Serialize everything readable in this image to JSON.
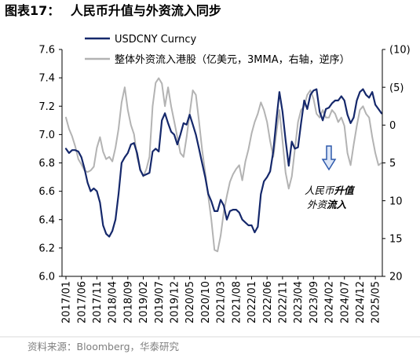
{
  "figure": {
    "label": "图表17："
  },
  "source": "资料来源：Bloomberg，华泰研究",
  "annotation": {
    "line1_regular": "人民币",
    "line1_bold": "升值",
    "line2_regular": "外资",
    "line2_bold": "流入",
    "arrow_icon": "down-arrow-icon",
    "arrow_stroke": "#2e5aac",
    "arrow_fill": "#dce6f7"
  },
  "chart_data": {
    "type": "line",
    "title": "人民币升值与外资流入同步",
    "legend_position": "top-left",
    "grid": false,
    "ylim": [
      6.0,
      7.6
    ],
    "y2lim": [
      -10,
      20
    ],
    "y2_reversed": true,
    "y_ticks": [
      "6.0",
      "6.2",
      "6.4",
      "6.6",
      "6.8",
      "7.0",
      "7.2",
      "7.4",
      "7.6"
    ],
    "y2_ticks": [
      "(10)",
      "(5)",
      "0",
      "5",
      "10",
      "15",
      "20"
    ],
    "x_ticks": [
      "2017/01",
      "2017/06",
      "2017/11",
      "2018/04",
      "2018/09",
      "2019/02",
      "2019/07",
      "2019/12",
      "2020/05",
      "2020/10",
      "2021/03",
      "2021/08",
      "2022/01",
      "2022/06",
      "2022/11",
      "2023/04",
      "2023/09",
      "2024/02",
      "2024/07",
      "2024/12",
      "2025/05"
    ],
    "x": [
      "2017/01",
      "2017/02",
      "2017/03",
      "2017/04",
      "2017/05",
      "2017/06",
      "2017/07",
      "2017/08",
      "2017/09",
      "2017/10",
      "2017/11",
      "2017/12",
      "2018/01",
      "2018/02",
      "2018/03",
      "2018/04",
      "2018/05",
      "2018/06",
      "2018/07",
      "2018/08",
      "2018/09",
      "2018/10",
      "2018/11",
      "2018/12",
      "2019/01",
      "2019/02",
      "2019/03",
      "2019/04",
      "2019/05",
      "2019/06",
      "2019/07",
      "2019/08",
      "2019/09",
      "2019/10",
      "2019/11",
      "2019/12",
      "2020/01",
      "2020/02",
      "2020/03",
      "2020/04",
      "2020/05",
      "2020/06",
      "2020/07",
      "2020/08",
      "2020/09",
      "2020/10",
      "2020/11",
      "2020/12",
      "2021/01",
      "2021/02",
      "2021/03",
      "2021/04",
      "2021/05",
      "2021/06",
      "2021/07",
      "2021/08",
      "2021/09",
      "2021/10",
      "2021/11",
      "2021/12",
      "2022/01",
      "2022/02",
      "2022/03",
      "2022/04",
      "2022/05",
      "2022/06",
      "2022/07",
      "2022/08",
      "2022/09",
      "2022/10",
      "2022/11",
      "2022/12",
      "2023/01",
      "2023/02",
      "2023/03",
      "2023/04",
      "2023/05",
      "2023/06",
      "2023/07",
      "2023/08",
      "2023/09",
      "2023/10",
      "2023/11",
      "2023/12",
      "2024/01",
      "2024/02",
      "2024/03",
      "2024/04",
      "2024/05",
      "2024/06",
      "2024/07",
      "2024/08",
      "2024/09",
      "2024/10",
      "2024/11",
      "2024/12",
      "2025/01",
      "2025/02",
      "2025/03",
      "2025/04",
      "2025/05",
      "2025/06",
      "2025/07"
    ],
    "series": [
      {
        "name": "USDCNY Curncy",
        "axis": "left",
        "color": "#15286b",
        "values": [
          6.9,
          6.87,
          6.89,
          6.89,
          6.88,
          6.84,
          6.76,
          6.66,
          6.6,
          6.62,
          6.6,
          6.52,
          6.36,
          6.3,
          6.28,
          6.32,
          6.4,
          6.58,
          6.8,
          6.84,
          6.87,
          6.93,
          6.94,
          6.87,
          6.75,
          6.71,
          6.72,
          6.73,
          6.88,
          6.9,
          6.88,
          7.1,
          7.15,
          7.08,
          7.02,
          7.0,
          6.93,
          7.0,
          7.08,
          7.07,
          7.14,
          7.07,
          7.0,
          6.9,
          6.8,
          6.7,
          6.58,
          6.53,
          6.46,
          6.46,
          6.54,
          6.5,
          6.4,
          6.46,
          6.47,
          6.47,
          6.45,
          6.4,
          6.38,
          6.36,
          6.36,
          6.31,
          6.35,
          6.58,
          6.67,
          6.7,
          6.74,
          6.88,
          7.1,
          7.3,
          7.16,
          6.96,
          6.78,
          6.95,
          6.9,
          6.91,
          7.08,
          7.24,
          7.18,
          7.28,
          7.31,
          7.32,
          7.16,
          7.1,
          7.18,
          7.19,
          7.22,
          7.24,
          7.24,
          7.27,
          7.24,
          7.14,
          7.08,
          7.12,
          7.24,
          7.3,
          7.32,
          7.28,
          7.26,
          7.3,
          7.21,
          7.18,
          7.15
        ]
      },
      {
        "name": "整体外资流入港股（亿美元，3MMA，右轴，逆序）",
        "axis": "right",
        "color": "#b3b3b3",
        "values": [
          -1.0,
          0.5,
          1.5,
          2.8,
          4.5,
          5.2,
          6.0,
          6.2,
          6.0,
          5.5,
          3.0,
          1.6,
          3.5,
          4.5,
          4.2,
          4.8,
          3.0,
          0.5,
          -3.0,
          -5.0,
          -2.0,
          0.0,
          1.2,
          4.2,
          5.8,
          6.8,
          5.8,
          4.2,
          -2.5,
          -5.6,
          -6.2,
          -5.5,
          -2.5,
          -5.0,
          -2.5,
          -0.5,
          1.6,
          3.7,
          4.2,
          1.6,
          -1.5,
          -4.6,
          -4.0,
          -0.5,
          3.2,
          6.3,
          9.4,
          12.5,
          16.5,
          16.7,
          14.6,
          11.5,
          9.4,
          7.5,
          6.5,
          5.8,
          5.3,
          7.3,
          4.8,
          3.2,
          1.1,
          -0.4,
          -1.5,
          -3.0,
          -2.0,
          -0.4,
          2.1,
          4.2,
          1.1,
          -2.0,
          2.1,
          6.3,
          8.4,
          6.8,
          3.2,
          -0.4,
          -2.0,
          -2.5,
          -4.0,
          -4.6,
          -3.5,
          -1.5,
          -1.0,
          -2.0,
          -1.0,
          -1.0,
          -2.0,
          -1.5,
          -0.4,
          -1.0,
          0.1,
          3.7,
          5.3,
          2.6,
          0.1,
          -2.0,
          -2.5,
          -1.5,
          -1.0,
          1.6,
          3.7,
          5.3,
          5.0
        ]
      }
    ]
  }
}
